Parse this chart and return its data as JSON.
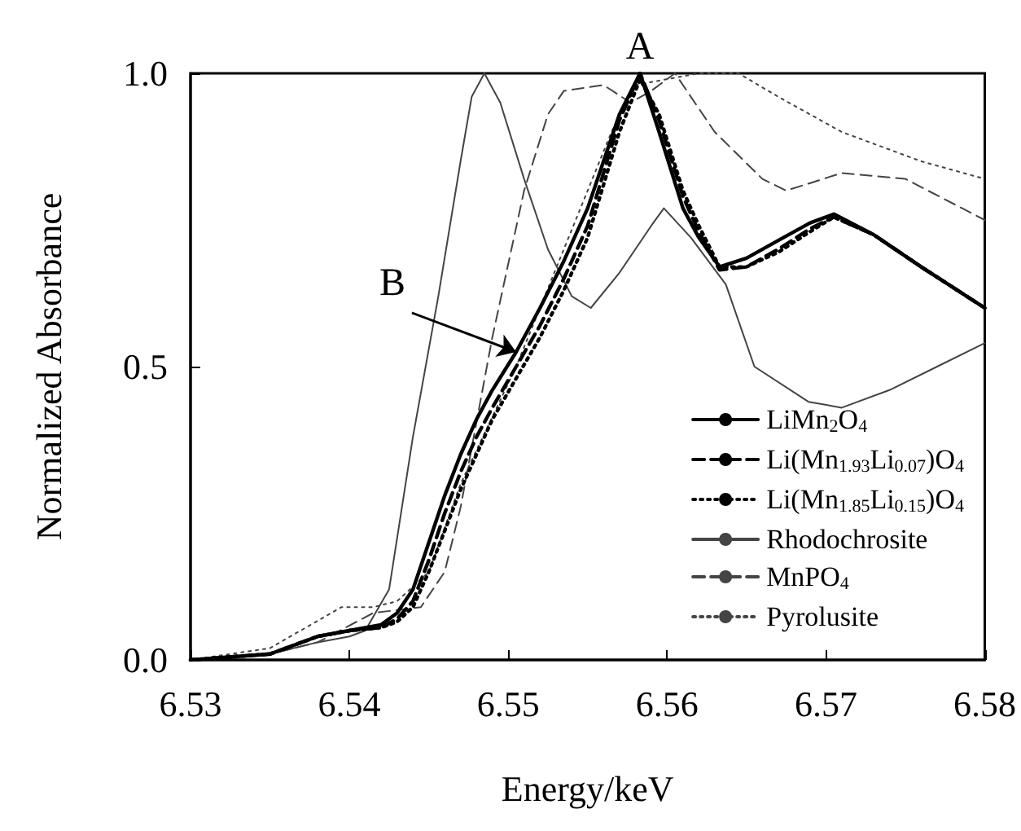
{
  "chart_data": {
    "type": "line",
    "xlabel": "Energy/keV",
    "ylabel": "Normalized Absorbance",
    "xlim": [
      6.53,
      6.58
    ],
    "xticks": [
      6.53,
      6.54,
      6.55,
      6.56,
      6.57,
      6.58
    ],
    "ylim": [
      0,
      1
    ],
    "yticks": [
      {
        "value": 0,
        "label": "0.0"
      },
      {
        "value": 0.5,
        "label": "0.5"
      },
      {
        "value": 1,
        "label": "1.0"
      }
    ],
    "grid": false,
    "legend": "bottom right",
    "marker": "none",
    "annotations": [
      {
        "text": "A",
        "x": 6.5583,
        "y": 1.0
      },
      {
        "text": "B",
        "x": 6.5505,
        "y": 0.525
      }
    ],
    "series": [
      {
        "name": "LiMn$_{2}$O$_{4}$",
        "color": "#000000",
        "line_style": "solid",
        "x": [
          6.53,
          6.535,
          6.538,
          6.54,
          6.542,
          6.543,
          6.544,
          6.545,
          6.546,
          6.547,
          6.548,
          6.549,
          6.5505,
          6.552,
          6.5535,
          6.555,
          6.556,
          6.557,
          6.5583,
          6.5595,
          6.561,
          6.562,
          6.5633,
          6.565,
          6.567,
          6.569,
          6.5705,
          6.573,
          6.576,
          6.58
        ],
        "values": [
          0,
          0.01,
          0.04,
          0.05,
          0.06,
          0.08,
          0.12,
          0.2,
          0.28,
          0.35,
          0.41,
          0.46,
          0.525,
          0.6,
          0.68,
          0.77,
          0.85,
          0.93,
          1.0,
          0.9,
          0.77,
          0.72,
          0.67,
          0.685,
          0.715,
          0.745,
          0.76,
          0.725,
          0.67,
          0.6
        ]
      },
      {
        "name": "Li(Mn$_{1.93}$Li$_{0.07}$)O$_{4}$",
        "color": "#000000",
        "line_style": "dashed",
        "x": [
          6.53,
          6.535,
          6.538,
          6.54,
          6.542,
          6.543,
          6.544,
          6.545,
          6.546,
          6.547,
          6.548,
          6.549,
          6.5505,
          6.552,
          6.5535,
          6.555,
          6.556,
          6.557,
          6.5583,
          6.5595,
          6.561,
          6.562,
          6.5633,
          6.565,
          6.567,
          6.569,
          6.5705,
          6.573,
          6.576,
          6.58
        ],
        "values": [
          0,
          0.01,
          0.04,
          0.05,
          0.055,
          0.07,
          0.1,
          0.17,
          0.25,
          0.32,
          0.38,
          0.43,
          0.5,
          0.57,
          0.65,
          0.74,
          0.83,
          0.92,
          1.0,
          0.92,
          0.79,
          0.73,
          0.665,
          0.67,
          0.7,
          0.735,
          0.755,
          0.725,
          0.67,
          0.6
        ]
      },
      {
        "name": "Li(Mn$_{1.85}$Li$_{0.15}$)O$_{4}$",
        "color": "#000000",
        "line_style": "dotted",
        "x": [
          6.53,
          6.535,
          6.538,
          6.54,
          6.542,
          6.543,
          6.544,
          6.545,
          6.546,
          6.547,
          6.548,
          6.549,
          6.5505,
          6.552,
          6.5535,
          6.555,
          6.556,
          6.557,
          6.5583,
          6.5595,
          6.561,
          6.562,
          6.5633,
          6.565,
          6.567,
          6.569,
          6.5705,
          6.573,
          6.576,
          6.58
        ],
        "values": [
          0,
          0.01,
          0.04,
          0.05,
          0.055,
          0.065,
          0.09,
          0.15,
          0.22,
          0.29,
          0.35,
          0.41,
          0.48,
          0.55,
          0.63,
          0.72,
          0.81,
          0.9,
          0.99,
          0.93,
          0.8,
          0.74,
          0.67,
          0.67,
          0.695,
          0.73,
          0.755,
          0.725,
          0.67,
          0.6
        ]
      },
      {
        "name": "Rhodochrosite",
        "color": "#444444",
        "line_style": "solid",
        "x": [
          6.53,
          6.535,
          6.538,
          6.54,
          6.541,
          6.5425,
          6.544,
          6.5456,
          6.547,
          6.5477,
          6.5485,
          6.5495,
          6.551,
          6.5525,
          6.554,
          6.5552,
          6.557,
          6.559,
          6.5598,
          6.5615,
          6.5637,
          6.5655,
          6.5689,
          6.571,
          6.574,
          6.577,
          6.58
        ],
        "values": [
          0,
          0.01,
          0.03,
          0.04,
          0.05,
          0.12,
          0.38,
          0.62,
          0.85,
          0.96,
          1.0,
          0.95,
          0.82,
          0.7,
          0.62,
          0.6,
          0.66,
          0.74,
          0.77,
          0.72,
          0.64,
          0.5,
          0.44,
          0.43,
          0.46,
          0.5,
          0.54
        ]
      },
      {
        "name": "MnPO$_{4}$",
        "color": "#444444",
        "line_style": "dashed",
        "x": [
          6.53,
          6.535,
          6.538,
          6.5415,
          6.5445,
          6.546,
          6.547,
          6.549,
          6.551,
          6.5525,
          6.5535,
          6.556,
          6.5577,
          6.559,
          6.5605,
          6.563,
          6.566,
          6.5675,
          6.571,
          6.575,
          6.58
        ],
        "values": [
          0,
          0.01,
          0.03,
          0.08,
          0.09,
          0.15,
          0.26,
          0.55,
          0.8,
          0.93,
          0.97,
          0.98,
          0.95,
          0.97,
          1.0,
          0.9,
          0.82,
          0.8,
          0.83,
          0.82,
          0.75
        ]
      },
      {
        "name": "Pyrolusite",
        "color": "#444444",
        "line_style": "dotted",
        "x": [
          6.53,
          6.535,
          6.5395,
          6.5415,
          6.543,
          6.545,
          6.547,
          6.5505,
          6.5535,
          6.5565,
          6.558,
          6.562,
          6.5645,
          6.567,
          6.571,
          6.576,
          6.58
        ],
        "values": [
          0,
          0.02,
          0.09,
          0.09,
          0.1,
          0.15,
          0.3,
          0.5,
          0.7,
          0.9,
          0.98,
          1.0,
          1.0,
          0.96,
          0.9,
          0.85,
          0.82
        ]
      }
    ]
  }
}
